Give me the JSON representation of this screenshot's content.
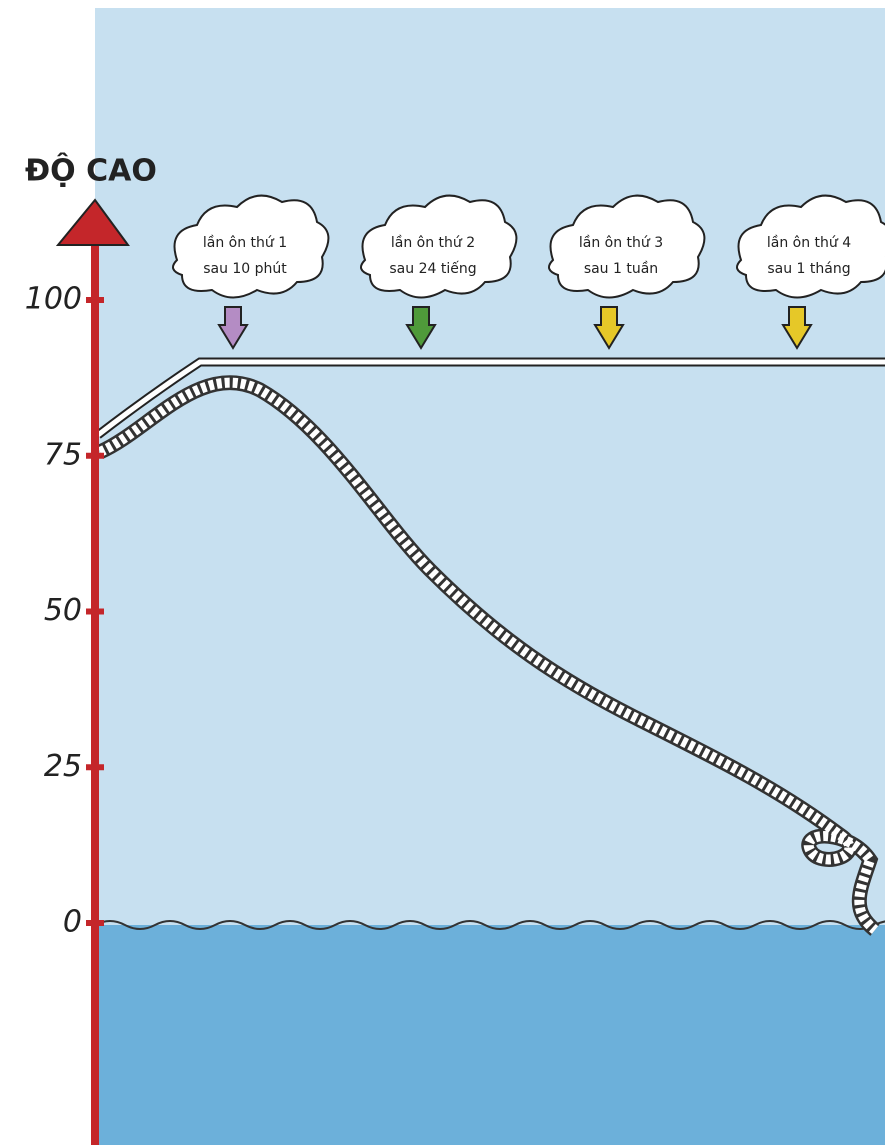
{
  "axis": {
    "title": "ĐỘ CAO",
    "ticks": [
      100,
      75,
      50,
      25,
      0
    ]
  },
  "clouds": [
    {
      "line1": "lần ôn thứ 1",
      "line2": "sau 10 phút",
      "color": "#b48cc4"
    },
    {
      "line1": "lần ôn thứ 2",
      "line2": "sau 24 tiếng",
      "color": "#4f9a3a"
    },
    {
      "line1": "lần ôn thứ 3",
      "line2": "sau 1 tuần",
      "color": "#e6c828"
    },
    {
      "line1": "lần ôn thứ 4",
      "line2": "sau 1 tháng",
      "color": "#e6c828"
    }
  ]
}
